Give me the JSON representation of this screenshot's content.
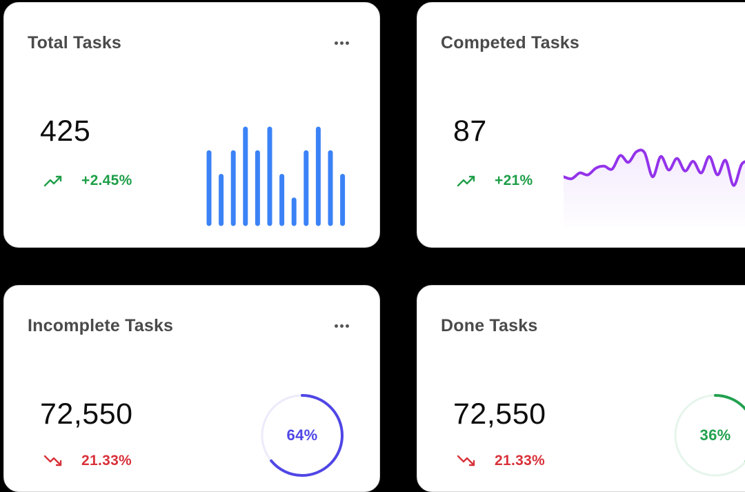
{
  "colors": {
    "bar": "#3b82f6",
    "wave": "#9333ea",
    "up": "#1e9e48",
    "down": "#d8313a",
    "ring_purple": "#4f46e5",
    "ring_purple_track": "#ecebfb",
    "ring_green": "#22a04f",
    "ring_green_track": "#e6f5eb"
  },
  "cards": {
    "total": {
      "title": "Total Tasks",
      "value": "425",
      "change": "+2.45%",
      "trend": "up",
      "menu_icon": "more-horizontal-icon"
    },
    "completed": {
      "title": "Competed Tasks",
      "value": "87",
      "change": "+21%",
      "trend": "up"
    },
    "incomplete": {
      "title": "Incomplete Tasks",
      "value": "72,550",
      "change": "21.33%",
      "trend": "down",
      "percent": "64%",
      "percent_value": 64,
      "menu_icon": "more-horizontal-icon"
    },
    "done": {
      "title": "Done Tasks",
      "value": "72,550",
      "change": "21.33%",
      "trend": "down",
      "percent": "36%",
      "percent_value": 36
    }
  },
  "chart_data": [
    {
      "type": "bar",
      "values": [
        6,
        4,
        6,
        8,
        6,
        8,
        4,
        2,
        6,
        8,
        6,
        4
      ],
      "ylim": [
        0,
        8
      ]
    },
    {
      "type": "line",
      "values": [
        5.2,
        5.0,
        5.6,
        5.4,
        6.1,
        6.3,
        6.0,
        7.4,
        6.7,
        7.8,
        7.7,
        5.2,
        7.3,
        5.9,
        7.1,
        5.8,
        6.8,
        5.6,
        7.3,
        5.4,
        6.9,
        4.3,
        6.5,
        6.8
      ],
      "ylim": [
        0,
        10
      ]
    }
  ]
}
